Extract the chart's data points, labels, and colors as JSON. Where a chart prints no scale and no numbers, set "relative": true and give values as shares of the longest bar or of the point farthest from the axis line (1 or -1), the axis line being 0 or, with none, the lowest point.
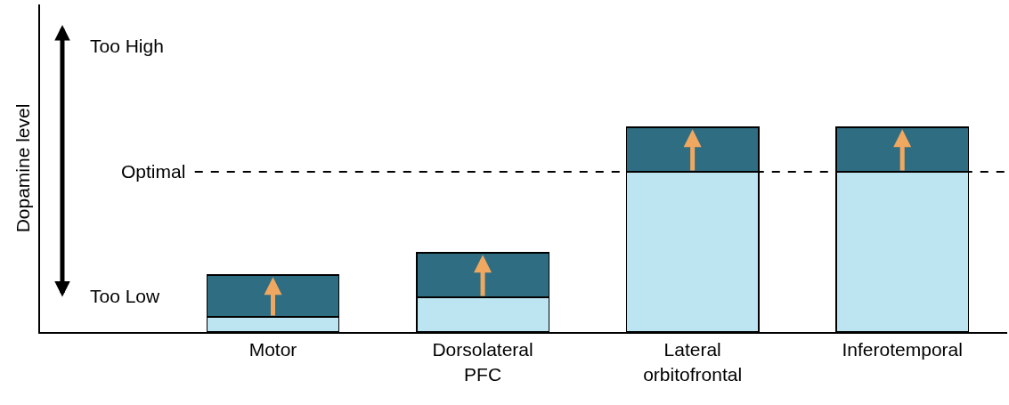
{
  "chart_data": {
    "type": "bar",
    "ylabel": "Dopamine level",
    "relative": true,
    "stacked": true,
    "categories": [
      "Motor",
      "Dorsolateral\nPFC",
      "Lateral\norbitofrontal",
      "Inferotemporal"
    ],
    "series": [
      {
        "color": "#bde5f1",
        "values": [
          0.074,
          0.17,
          0.783,
          0.783
        ]
      },
      {
        "color": "#2f6d82",
        "values": [
          0.204,
          0.217,
          0.217,
          0.217
        ]
      }
    ],
    "ref_lines": [
      {
        "axis": "y",
        "value": 0.783,
        "label": "Optimal",
        "line_style": "dashed",
        "color": "#000000"
      }
    ],
    "annotations": [
      "Too High",
      "Too Low"
    ]
  }
}
